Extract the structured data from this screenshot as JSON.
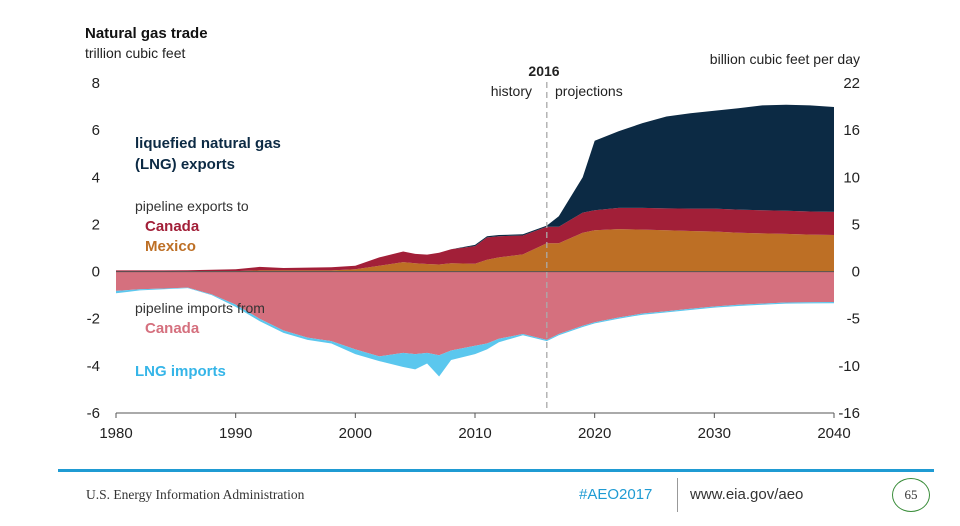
{
  "chart_data": {
    "type": "area",
    "title": "Natural gas trade",
    "left_axis_label": "trillion cubic feet",
    "right_axis_label": "billion cubic feet per day",
    "x_range": [
      1980,
      2040
    ],
    "x_ticks": [
      "1980",
      "1990",
      "2000",
      "2010",
      "2020",
      "2030",
      "2040"
    ],
    "y_range": [
      -6,
      8
    ],
    "left_ticks": [
      "8",
      "6",
      "4",
      "2",
      "0",
      "-2",
      "-4",
      "-6"
    ],
    "right_ticks": [
      "22",
      "16",
      "10",
      "5",
      "0",
      "-5",
      "-10",
      "-16"
    ],
    "divider": {
      "year": "2016",
      "left_label": "history",
      "right_label": "projections"
    },
    "series_labels": {
      "lng_exports": [
        "liquefied natural gas",
        "(LNG) exports"
      ],
      "pipeline_exports": "pipeline exports to",
      "canada_export": "Canada",
      "mexico_export": "Mexico",
      "pipeline_imports": "pipeline imports from",
      "canada_import": "Canada",
      "lng_imports": "LNG imports"
    },
    "colors": {
      "lng_exports": "#0c2a44",
      "pipeline_exports_canada": "#a21f38",
      "pipeline_exports_mexico": "#bd6f25",
      "pipeline_imports_canada": "#d5707e",
      "lng_imports": "#5bc7ee",
      "text_canada_export": "#a21f38",
      "text_mexico": "#bd6f25",
      "text_canada_import": "#d5707e",
      "text_lng_imports": "#35b5e8",
      "text_lng_exports": "#0c2a44"
    },
    "x": [
      1980,
      1982,
      1984,
      1986,
      1988,
      1990,
      1992,
      1994,
      1996,
      1998,
      2000,
      2002,
      2004,
      2005,
      2006,
      2007,
      2008,
      2010,
      2011,
      2012,
      2014,
      2016,
      2017,
      2019,
      2020,
      2022,
      2024,
      2026,
      2028,
      2030,
      2032,
      2034,
      2036,
      2038,
      2040
    ],
    "series": [
      {
        "name": "Mexico",
        "values": [
          0,
          0,
          0,
          0.01,
          0.02,
          0.02,
          0.05,
          0.05,
          0.05,
          0.05,
          0.1,
          0.25,
          0.4,
          0.35,
          0.32,
          0.3,
          0.35,
          0.33,
          0.5,
          0.6,
          0.73,
          1.2,
          1.2,
          1.65,
          1.75,
          1.8,
          1.78,
          1.75,
          1.72,
          1.7,
          1.65,
          1.62,
          1.6,
          1.57,
          1.55
        ]
      },
      {
        "name": "Canada",
        "values": [
          0.05,
          0.05,
          0.05,
          0.05,
          0.06,
          0.08,
          0.15,
          0.1,
          0.12,
          0.13,
          0.15,
          0.35,
          0.45,
          0.4,
          0.4,
          0.5,
          0.6,
          0.75,
          0.95,
          0.9,
          0.8,
          0.7,
          0.7,
          0.85,
          0.85,
          0.9,
          0.92,
          0.93,
          0.95,
          0.97,
          0.98,
          0.98,
          0.98,
          0.98,
          0.98
        ]
      },
      {
        "name": "liquefied natural gas (LNG) exports",
        "values": [
          0,
          0,
          0,
          0,
          0,
          0,
          0,
          0,
          0,
          0,
          0,
          0,
          0,
          0,
          0,
          0,
          0,
          0.05,
          0.05,
          0.05,
          0.05,
          0.05,
          0.45,
          1.5,
          2.95,
          3.25,
          3.6,
          3.9,
          4.05,
          4.15,
          4.3,
          4.45,
          4.5,
          4.5,
          4.45
        ]
      },
      {
        "name": "Canada",
        "values": [
          -0.82,
          -0.75,
          -0.72,
          -0.68,
          -0.97,
          -1.4,
          -2.0,
          -2.5,
          -2.8,
          -2.95,
          -3.3,
          -3.6,
          -3.45,
          -3.5,
          -3.45,
          -3.55,
          -3.35,
          -3.15,
          -3.05,
          -2.85,
          -2.65,
          -2.9,
          -2.65,
          -2.3,
          -2.15,
          -1.95,
          -1.78,
          -1.68,
          -1.58,
          -1.48,
          -1.41,
          -1.36,
          -1.31,
          -1.3,
          -1.29
        ]
      },
      {
        "name": "LNG imports",
        "values": [
          -0.1,
          -0.05,
          -0.03,
          -0.02,
          -0.03,
          -0.1,
          -0.1,
          -0.1,
          -0.1,
          -0.1,
          -0.2,
          -0.2,
          -0.6,
          -0.65,
          -0.45,
          -0.9,
          -0.4,
          -0.35,
          -0.25,
          -0.15,
          -0.05,
          -0.05,
          -0.05,
          -0.05,
          -0.05,
          -0.05,
          -0.05,
          -0.05,
          -0.05,
          -0.05,
          -0.05,
          -0.05,
          -0.05,
          -0.05,
          -0.05
        ]
      }
    ]
  },
  "footer": {
    "agency": "U.S. Energy Information Administration",
    "hashtag": "#AEO2017",
    "website": "www.eia.gov/aeo",
    "page_number": "65"
  }
}
